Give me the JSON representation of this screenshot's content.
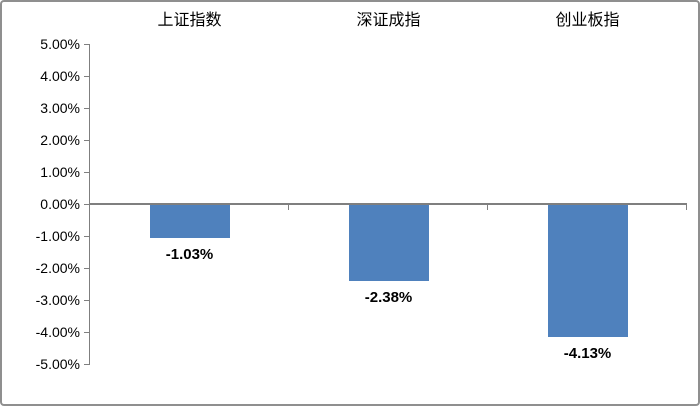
{
  "chart": {
    "background_color": "#ffffff",
    "border_color": "#8f8f8f",
    "axis_color": "#7f7f7f",
    "bar_color": "#4f81bd",
    "text_color": "#000000"
  },
  "chart_data": {
    "type": "bar",
    "title": "",
    "xlabel": "",
    "ylabel": "",
    "categories": [
      "上证指数",
      "深证成指",
      "创业板指"
    ],
    "values": [
      -1.03,
      -2.38,
      -4.13
    ],
    "value_labels": [
      "-1.03%",
      "-2.38%",
      "-4.13%"
    ],
    "ylim": [
      -5,
      5
    ],
    "y_tick_values": [
      5,
      4,
      3,
      2,
      1,
      0,
      -1,
      -2,
      -3,
      -4,
      -5
    ],
    "y_tick_labels": [
      "5.00%",
      "4.00%",
      "3.00%",
      "2.00%",
      "1.00%",
      "0.00%",
      "-1.00%",
      "-2.00%",
      "-3.00%",
      "-4.00%",
      "-5.00%"
    ],
    "grid": false,
    "legend_position": "none",
    "category_labels_position": "top",
    "bar_labels_position": "below-bar"
  }
}
